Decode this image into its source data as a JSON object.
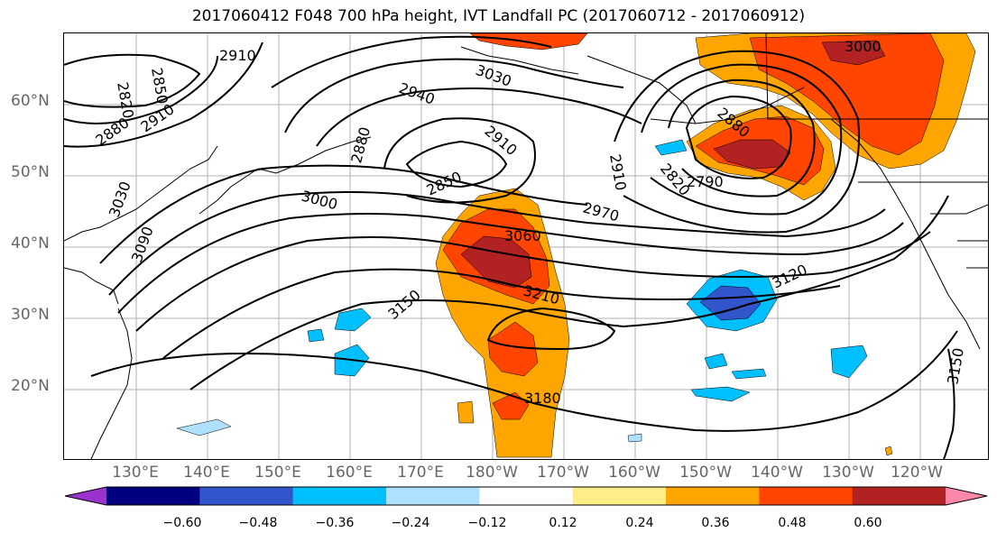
{
  "title": "2017060412 F048 700 hPa height, IVT Landfall PC (2017060712 - 2017060912)",
  "lat_labels": [
    "60°N",
    "50°N",
    "40°N",
    "30°N",
    "20°N"
  ],
  "lon_labels": [
    "130°E",
    "140°E",
    "150°E",
    "160°E",
    "170°E",
    "180°W",
    "170°W",
    "160°W",
    "150°W",
    "140°W",
    "130°W",
    "120°W"
  ],
  "contour_labels": [
    "2910",
    "2820",
    "2850",
    "2880",
    "2910",
    "2940",
    "3030",
    "2880",
    "2910",
    "2850",
    "3000",
    "3030",
    "3090",
    "3060",
    "2970",
    "2910",
    "2880",
    "2820",
    "2790",
    "3000",
    "3210",
    "3150",
    "3120",
    "3180",
    "3150"
  ],
  "colorbar": {
    "colors": [
      "#9933cc",
      "#000080",
      "#3355cc",
      "#00bfff",
      "#b0e0ff",
      "#ffffff",
      "#ffee88",
      "#ffa500",
      "#ff4500",
      "#b22222",
      "#ff88aa"
    ],
    "tick_labels": [
      "−0.60",
      "−0.48",
      "−0.36",
      "−0.24",
      "−0.12",
      "0.12",
      "0.24",
      "0.36",
      "0.48",
      "0.60"
    ],
    "extend": "both"
  },
  "colors": {
    "grid": "#b0b0b0",
    "contour": "#000000",
    "coast": "#000000"
  }
}
